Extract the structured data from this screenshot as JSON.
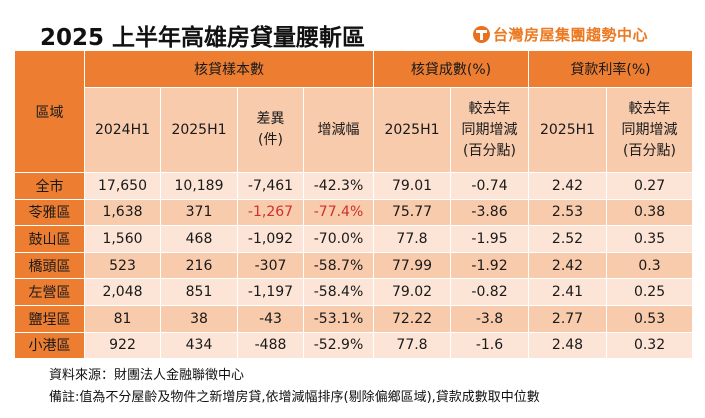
{
  "title": "2025 上半年高雄房貸量腰斬區",
  "logo_text": "台灣房屋集團趨勢中心",
  "colors": {
    "header": "#ED7D31",
    "subheader": "#F8CBAD",
    "row_light": "#FCE4D6",
    "row_dark": "#F8CBAD",
    "highlight": "#D0302A"
  },
  "header": {
    "region": "區域",
    "groups": [
      "核貸樣本數",
      "核貸成數(%)",
      "貸款利率(%)"
    ],
    "sub": [
      "2024H1",
      "2025H1",
      "差異\n(件)",
      "增減幅",
      "2025H1",
      "較去年\n同期增減\n(百分點)",
      "2025H1",
      "較去年\n同期增減\n(百分點)"
    ]
  },
  "rows": [
    {
      "region": "全市",
      "cells": [
        "17,650",
        "10,189",
        "-7,461",
        "-42.3%",
        "79.01",
        "-0.74",
        "2.42",
        "0.27"
      ],
      "highlight": false
    },
    {
      "region": "苓雅區",
      "cells": [
        "1,638",
        "371",
        "-1,267",
        "-77.4%",
        "75.77",
        "-3.86",
        "2.53",
        "0.38"
      ],
      "highlight": true
    },
    {
      "region": "鼓山區",
      "cells": [
        "1,560",
        "468",
        "-1,092",
        "-70.0%",
        "77.8",
        "-1.95",
        "2.52",
        "0.35"
      ],
      "highlight": false
    },
    {
      "region": "橋頭區",
      "cells": [
        "523",
        "216",
        "-307",
        "-58.7%",
        "77.99",
        "-1.92",
        "2.42",
        "0.3"
      ],
      "highlight": false
    },
    {
      "region": "左營區",
      "cells": [
        "2,048",
        "851",
        "-1,197",
        "-58.4%",
        "79.02",
        "-0.82",
        "2.41",
        "0.25"
      ],
      "highlight": false
    },
    {
      "region": "鹽埕區",
      "cells": [
        "81",
        "38",
        "-43",
        "-53.1%",
        "72.22",
        "-3.8",
        "2.77",
        "0.53"
      ],
      "highlight": false
    },
    {
      "region": "小港區",
      "cells": [
        "922",
        "434",
        "-488",
        "-52.9%",
        "77.8",
        "-1.6",
        "2.48",
        "0.32"
      ],
      "highlight": false
    }
  ],
  "source": "資料來源：財團法人金融聯徵中心",
  "remark": "備註:值為不分屋齡及物件之新增房貸,依增減幅排序(剔除偏鄉區域),貸款成數取中位數"
}
